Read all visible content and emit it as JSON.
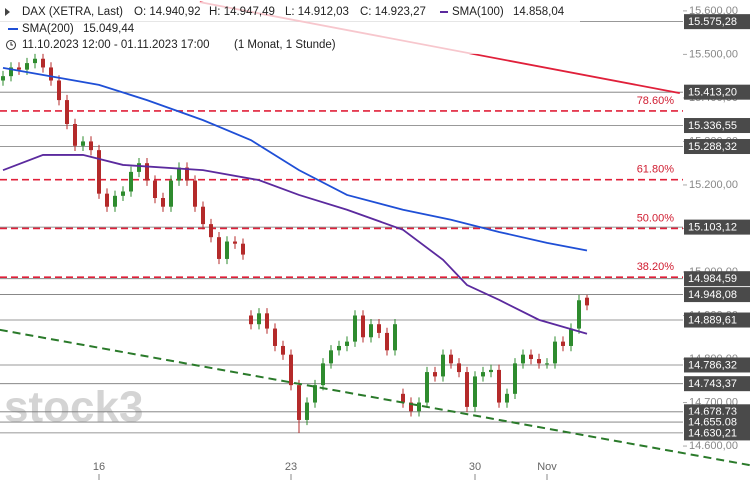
{
  "chart_data": {
    "type": "candlestick",
    "header": {
      "symbol": "DAX (XETRA, Last)",
      "open": "O: 14.940,92",
      "high": "H: 14.947,49",
      "low": "L: 14.912,03",
      "close": "C: 14.923,27",
      "sma100_name": "SMA(100)",
      "sma100_value": "14.858,04",
      "sma200_name": "SMA(200)",
      "sma200_value": "15.049,44",
      "range": "11.10.2023 12:00 - 01.11.2023 17:00",
      "period": "(1 Monat, 1 Stunde)"
    },
    "watermark": "stock3",
    "xlim": [
      0,
      85
    ],
    "ylim": [
      14522,
      15625
    ],
    "xticks": [
      {
        "value": 12,
        "label": "16"
      },
      {
        "value": 36,
        "label": "23"
      },
      {
        "value": 59,
        "label": "30"
      },
      {
        "value": 68,
        "label": "Nov"
      }
    ],
    "yticks": [
      {
        "value": 14600,
        "label": "14.600,00"
      },
      {
        "value": 14700,
        "label": "14.700,00"
      },
      {
        "value": 14800,
        "label": "14.800,00"
      },
      {
        "value": 14900,
        "label": "14.900,00"
      },
      {
        "value": 15000,
        "label": "15.000,00"
      },
      {
        "value": 15100,
        "label": "15.100,00"
      },
      {
        "value": 15200,
        "label": "15.200,00"
      },
      {
        "value": 15300,
        "label": "15.300,00"
      },
      {
        "value": 15400,
        "label": "15.400,00"
      },
      {
        "value": 15500,
        "label": "15.500,00"
      },
      {
        "value": 15600,
        "label": "15.600,00"
      }
    ],
    "up_color": "#2e8b2e",
    "down_color": "#b42a2a",
    "open": [
      15440,
      15450,
      15470,
      15465,
      15480,
      15490,
      15470,
      15440,
      15395,
      15340,
      15290,
      15300,
      15280,
      15180,
      15150,
      15175,
      15185,
      15230,
      15250,
      15210,
      15170,
      15150,
      15210,
      15240,
      15210,
      15150,
      15110,
      15080,
      15030,
      15070,
      15065,
      14900,
      14880,
      14905,
      14870,
      14830,
      14810,
      14740,
      14660,
      14700,
      14740,
      14790,
      14820,
      14830,
      14840,
      14900,
      14850,
      14880,
      14860,
      14820,
      14720,
      14700,
      14680,
      14700,
      14770,
      14760,
      14810,
      14790,
      14770,
      14690,
      14760,
      14770,
      14775,
      14700,
      14720,
      14790,
      14810,
      14800,
      14790,
      14790,
      14840,
      14830,
      14870,
      14940.92
    ],
    "high": [
      15462,
      15482,
      15482,
      15492,
      15502,
      15502,
      15482,
      15452,
      15407,
      15352,
      15312,
      15312,
      15292,
      15192,
      15187,
      15197,
      15242,
      15262,
      15262,
      15222,
      15182,
      15222,
      15252,
      15252,
      15222,
      15162,
      15122,
      15092,
      15082,
      15082,
      15077,
      14912,
      14917,
      14917,
      14882,
      14842,
      14822,
      14752,
      14712,
      14752,
      14802,
      14832,
      14842,
      14852,
      14912,
      14912,
      14892,
      14892,
      14872,
      14892,
      14732,
      14712,
      14712,
      14782,
      14782,
      14822,
      14822,
      14802,
      14782,
      14772,
      14782,
      14787,
      14787,
      14732,
      14802,
      14822,
      14822,
      14812,
      14802,
      14852,
      14852,
      14882,
      14947,
      14947.49
    ],
    "low": [
      15428,
      15438,
      15453,
      15453,
      15468,
      15458,
      15428,
      15383,
      15328,
      15278,
      15278,
      15268,
      15168,
      15138,
      15138,
      15163,
      15173,
      15218,
      15198,
      15158,
      15138,
      15138,
      15198,
      15198,
      15138,
      15098,
      15068,
      15018,
      15018,
      15053,
      15028,
      14868,
      14868,
      14858,
      14818,
      14798,
      14728,
      14630,
      14648,
      14688,
      14728,
      14778,
      14808,
      14818,
      14828,
      14838,
      14838,
      14848,
      14808,
      14808,
      14688,
      14668,
      14668,
      14688,
      14748,
      14748,
      14778,
      14758,
      14678,
      14678,
      14748,
      14758,
      14688,
      14688,
      14708,
      14778,
      14788,
      14778,
      14778,
      14778,
      14818,
      14818,
      14858,
      14912.03
    ],
    "close": [
      15450,
      15470,
      15465,
      15480,
      15490,
      15470,
      15440,
      15395,
      15340,
      15290,
      15300,
      15280,
      15180,
      15150,
      15175,
      15185,
      15230,
      15250,
      15210,
      15170,
      15150,
      15210,
      15240,
      15210,
      15150,
      15110,
      15080,
      15030,
      15070,
      15065,
      15040,
      14880,
      14905,
      14870,
      14830,
      14810,
      14740,
      14660,
      14700,
      14740,
      14790,
      14820,
      14830,
      14840,
      14900,
      14850,
      14880,
      14860,
      14820,
      14880,
      14700,
      14680,
      14700,
      14770,
      14760,
      14810,
      14790,
      14770,
      14690,
      14760,
      14770,
      14775,
      14700,
      14720,
      14790,
      14810,
      14800,
      14790,
      14790,
      14840,
      14830,
      14870,
      14935,
      14923.27
    ],
    "series": [
      {
        "name": "SMA(100)",
        "color": "#5b2a9e",
        "x": [
          0,
          5,
          10,
          15,
          25,
          32,
          37,
          43,
          50,
          55,
          58,
          62,
          67,
          73
        ],
        "values": [
          15234,
          15269,
          15269,
          15246,
          15234,
          15211,
          15177,
          15143,
          15097,
          15028,
          14970,
          14936,
          14890,
          14858.04
        ]
      },
      {
        "name": "SMA(200)",
        "color": "#1f4fd6",
        "x": [
          0,
          12,
          18,
          25,
          31,
          37,
          43,
          50,
          56,
          62,
          68,
          73
        ],
        "values": [
          15469,
          15430,
          15395,
          15349,
          15303,
          15234,
          15177,
          15143,
          15120,
          15092,
          15067,
          15049.44
        ]
      }
    ],
    "fib_levels": [
      {
        "name": "78.60%",
        "price": 15370
      },
      {
        "name": "61.80%",
        "price": 15212
      },
      {
        "name": "50.00%",
        "price": 15100
      },
      {
        "name": "38.20%",
        "price": 14988
      }
    ],
    "levels": [
      {
        "value": 15575.28,
        "label": "15.575,28"
      },
      {
        "value": 15413.2,
        "label": "15.413,20"
      },
      {
        "value": 15336.55,
        "label": "15.336,55"
      },
      {
        "value": 15288.32,
        "label": "15.288,32"
      },
      {
        "value": 15103.12,
        "label": "15.103,12"
      },
      {
        "value": 14984.59,
        "label": "14.984,59"
      },
      {
        "value": 14948.08,
        "label": "14.948,08"
      },
      {
        "value": 14889.61,
        "label": "14.889,61"
      },
      {
        "value": 14786.32,
        "label": "14.786,32"
      },
      {
        "value": 14743.37,
        "label": "14.743,37"
      },
      {
        "value": 14678.73,
        "label": "14.678,73"
      },
      {
        "value": 14655.08,
        "label": "14.655,08"
      },
      {
        "value": 14630.21,
        "label": "14.630,21"
      }
    ],
    "trendlines": [
      {
        "color": "#e0203a",
        "dash": false,
        "x": [
          24.6,
          84.6
        ],
        "values": [
          15620,
          15411
        ]
      },
      {
        "color": "#2a7a2a",
        "dash": true,
        "x": [
          -0.4,
          93.4
        ],
        "values": [
          14867,
          14556
        ]
      }
    ]
  }
}
